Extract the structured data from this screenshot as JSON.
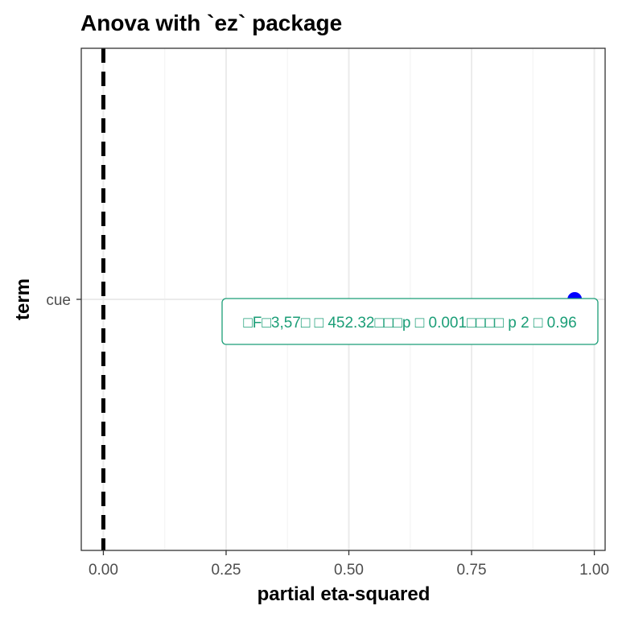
{
  "chart_data": {
    "type": "scatter",
    "title": "Anova with `ez` package",
    "xlabel": "partial eta-squared",
    "ylabel": "term",
    "xlim": [
      -0.045,
      1.022
    ],
    "x_ticks": [
      "0.00",
      "0.25",
      "0.50",
      "0.75",
      "1.00"
    ],
    "x_tick_values": [
      0,
      0.25,
      0.5,
      0.75,
      1.0
    ],
    "categories": [
      "cue"
    ],
    "points": [
      {
        "term": "cue",
        "estimate": 0.96
      }
    ],
    "reference_line": {
      "x": 0,
      "style": "dashed"
    },
    "grid": true,
    "annotation": "□F□3,57□ □ 452.32□□□p □ 0.001□□□□ p 2 □ 0.96",
    "colors": {
      "point": "#0000ff",
      "annotation": "#1b9e77",
      "reference_line": "#000000",
      "grid_major": "#ebebeb",
      "grid_minor": "#f5f5f5"
    }
  }
}
